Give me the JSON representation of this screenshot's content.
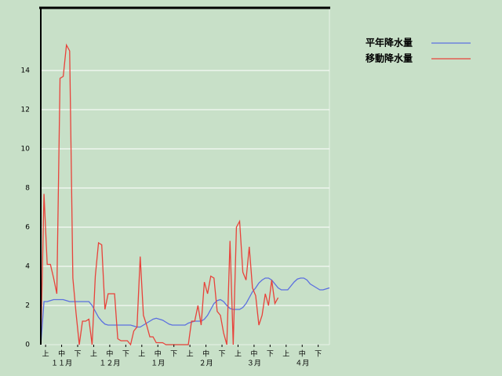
{
  "chart_data": {
    "type": "line",
    "x": [
      0,
      2,
      4,
      6,
      8,
      10,
      12,
      14,
      16,
      18,
      20,
      22,
      24,
      26,
      28,
      30,
      32,
      34,
      36,
      38,
      40,
      42,
      44,
      46,
      48,
      50,
      52,
      54,
      56,
      58,
      60,
      62,
      64,
      66,
      68,
      70,
      72,
      74,
      76,
      78,
      80,
      82,
      84,
      86,
      88,
      90,
      92,
      94,
      96,
      98,
      100,
      102,
      104,
      106,
      108,
      110,
      112,
      114,
      116,
      118,
      120,
      122,
      124,
      126,
      128,
      130,
      132,
      134,
      136,
      138,
      140,
      142,
      144,
      146,
      148,
      150,
      152,
      154,
      156,
      158,
      160,
      162,
      164,
      166,
      168,
      170,
      172,
      174,
      176,
      178,
      180
    ],
    "xlim": [
      0,
      180
    ],
    "xticks": [
      {
        "value": 3,
        "label": "上"
      },
      {
        "value": 13,
        "label": "中"
      },
      {
        "value": 23,
        "label": "下"
      },
      {
        "value": 33,
        "label": "上"
      },
      {
        "value": 43,
        "label": "中"
      },
      {
        "value": 53,
        "label": "下"
      },
      {
        "value": 63,
        "label": "上"
      },
      {
        "value": 73,
        "label": "中"
      },
      {
        "value": 83,
        "label": "下"
      },
      {
        "value": 93,
        "label": "上"
      },
      {
        "value": 103,
        "label": "中"
      },
      {
        "value": 113,
        "label": "下"
      },
      {
        "value": 123,
        "label": "上"
      },
      {
        "value": 133,
        "label": "中"
      },
      {
        "value": 143,
        "label": "下"
      },
      {
        "value": 153,
        "label": "上"
      },
      {
        "value": 163,
        "label": "中"
      },
      {
        "value": 173,
        "label": "下"
      }
    ],
    "month_labels": [
      {
        "value": 13,
        "label": "１１月"
      },
      {
        "value": 43,
        "label": "１２月"
      },
      {
        "value": 73,
        "label": "１月"
      },
      {
        "value": 103,
        "label": "２月"
      },
      {
        "value": 133,
        "label": "３月"
      },
      {
        "value": 163,
        "label": "４月"
      }
    ],
    "ylim": [
      0,
      17.2
    ],
    "yticks": [
      0,
      2,
      4,
      6,
      8,
      10,
      12,
      14
    ],
    "grid": true,
    "legend": "top-right",
    "series": [
      {
        "name": "平年降水量",
        "color": "#5b6fe0",
        "values": [
          0,
          2.2,
          2.2,
          2.25,
          2.3,
          2.3,
          2.3,
          2.3,
          2.25,
          2.2,
          2.2,
          2.2,
          2.2,
          2.2,
          2.2,
          2.2,
          2.0,
          1.7,
          1.4,
          1.2,
          1.05,
          1.0,
          1.0,
          1.0,
          1.0,
          1.0,
          1.0,
          1.0,
          1.0,
          0.95,
          0.9,
          0.9,
          1.0,
          1.1,
          1.2,
          1.3,
          1.35,
          1.3,
          1.25,
          1.15,
          1.05,
          1.0,
          1.0,
          1.0,
          1.0,
          1.0,
          1.1,
          1.15,
          1.2,
          1.2,
          1.2,
          1.3,
          1.5,
          1.8,
          2.1,
          2.25,
          2.3,
          2.2,
          2.0,
          1.85,
          1.8,
          1.8,
          1.8,
          1.9,
          2.1,
          2.4,
          2.7,
          2.9,
          3.15,
          3.3,
          3.4,
          3.4,
          3.3,
          3.1,
          2.9,
          2.8,
          2.8,
          2.8,
          3.0,
          3.2,
          3.35,
          3.4,
          3.4,
          3.3,
          3.1,
          3.0,
          2.9,
          2.8,
          2.8,
          2.85,
          2.9
        ]
      },
      {
        "name": "移動降水量",
        "color": "#e8423a",
        "values": [
          0,
          7.7,
          4.1,
          4.1,
          3.4,
          2.6,
          13.6,
          13.7,
          15.3,
          15.0,
          3.4,
          1.6,
          0,
          1.2,
          1.2,
          1.3,
          0,
          3.5,
          5.2,
          5.1,
          1.8,
          2.6,
          2.6,
          2.6,
          0.3,
          0.2,
          0.2,
          0.2,
          0,
          0.7,
          0.9,
          4.5,
          1.5,
          1.0,
          0.4,
          0.4,
          0.1,
          0.1,
          0.1,
          0,
          0,
          0,
          0,
          0,
          0,
          0,
          0,
          1.2,
          1.2,
          2.0,
          1.0,
          3.2,
          2.6,
          3.5,
          3.4,
          1.7,
          1.5,
          0.6,
          0,
          5.3,
          0,
          6.0,
          6.3,
          3.7,
          3.3,
          5.0,
          2.9,
          2.5,
          1.0,
          1.5,
          2.6,
          2.0,
          3.3,
          2.1,
          2.4,
          null,
          null,
          null,
          null,
          null,
          null,
          null,
          null,
          null,
          null,
          null,
          null,
          null,
          null,
          null,
          null
        ]
      }
    ]
  }
}
